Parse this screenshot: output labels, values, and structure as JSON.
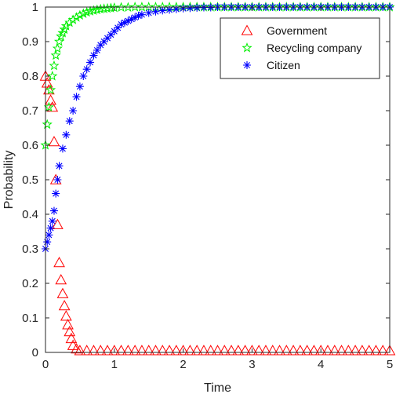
{
  "chart_data": {
    "type": "scatter",
    "title": "",
    "xlabel": "Time",
    "ylabel": "Probability",
    "xlim": [
      0,
      5
    ],
    "ylim": [
      0,
      1
    ],
    "x_ticks": [
      0,
      1,
      2,
      3,
      4,
      5
    ],
    "x_tick_labels": [
      "0",
      "1",
      "2",
      "3",
      "4",
      "5"
    ],
    "y_ticks": [
      0,
      0.1,
      0.2,
      0.3,
      0.4,
      0.5,
      0.6,
      0.7,
      0.8,
      0.9,
      1
    ],
    "y_tick_labels": [
      "0",
      "0.1",
      "0.2",
      "0.3",
      "0.4",
      "0.5",
      "0.6",
      "0.7",
      "0.8",
      "0.9",
      "1"
    ],
    "grid": false,
    "legend_position": "top-right",
    "series": [
      {
        "name": "Government",
        "marker": "triangle",
        "color": "#ff0000",
        "x": [
          0,
          0.025,
          0.05,
          0.075,
          0.1,
          0.125,
          0.15,
          0.175,
          0.2,
          0.225,
          0.25,
          0.275,
          0.3,
          0.325,
          0.35,
          0.375,
          0.4,
          0.45,
          0.5,
          0.6,
          0.7,
          0.8,
          0.9,
          1.0,
          1.1,
          1.2,
          1.3,
          1.4,
          1.5,
          1.6,
          1.7,
          1.8,
          1.9,
          2.0,
          2.1,
          2.2,
          2.3,
          2.4,
          2.5,
          2.6,
          2.7,
          2.8,
          2.9,
          3.0,
          3.1,
          3.2,
          3.3,
          3.4,
          3.5,
          3.6,
          3.7,
          3.8,
          3.9,
          4.0,
          4.1,
          4.2,
          4.3,
          4.4,
          4.5,
          4.6,
          4.7,
          4.8,
          4.9,
          5.0
        ],
        "y": [
          0.8,
          0.78,
          0.76,
          0.73,
          0.71,
          0.61,
          0.5,
          0.37,
          0.26,
          0.21,
          0.17,
          0.135,
          0.105,
          0.08,
          0.06,
          0.04,
          0.02,
          0.01,
          0.005,
          0.005,
          0.005,
          0.005,
          0.005,
          0.005,
          0.005,
          0.005,
          0.005,
          0.005,
          0.005,
          0.005,
          0.005,
          0.005,
          0.005,
          0.005,
          0.005,
          0.005,
          0.005,
          0.005,
          0.005,
          0.005,
          0.005,
          0.005,
          0.005,
          0.005,
          0.005,
          0.005,
          0.005,
          0.005,
          0.005,
          0.005,
          0.005,
          0.005,
          0.005,
          0.005,
          0.005,
          0.005,
          0.005,
          0.005,
          0.005,
          0.005,
          0.005,
          0.005,
          0.005,
          0.005
        ]
      },
      {
        "name": "Recycling company",
        "marker": "pentagram",
        "color": "#00ee00",
        "x": [
          0,
          0.025,
          0.05,
          0.075,
          0.1,
          0.125,
          0.15,
          0.175,
          0.2,
          0.225,
          0.25,
          0.275,
          0.3,
          0.35,
          0.4,
          0.45,
          0.5,
          0.55,
          0.6,
          0.65,
          0.7,
          0.75,
          0.8,
          0.85,
          0.9,
          0.95,
          1.0,
          1.1,
          1.2,
          1.3,
          1.4,
          1.5,
          1.6,
          1.7,
          1.8,
          1.9,
          2.0,
          2.1,
          2.2,
          2.3,
          2.4,
          2.5,
          2.6,
          2.7,
          2.8,
          2.9,
          3.0,
          3.1,
          3.2,
          3.3,
          3.4,
          3.5,
          3.6,
          3.7,
          3.8,
          3.9,
          4.0,
          4.1,
          4.2,
          4.3,
          4.4,
          4.5,
          4.6,
          4.7,
          4.8,
          4.9,
          5.0
        ],
        "y": [
          0.6,
          0.66,
          0.71,
          0.76,
          0.8,
          0.83,
          0.86,
          0.88,
          0.9,
          0.915,
          0.925,
          0.935,
          0.945,
          0.955,
          0.963,
          0.97,
          0.976,
          0.981,
          0.985,
          0.988,
          0.99,
          0.992,
          0.994,
          0.995,
          0.996,
          0.997,
          0.998,
          0.999,
          0.999,
          1,
          1,
          1,
          1,
          1,
          1,
          1,
          1,
          1,
          1,
          1,
          1,
          1,
          1,
          1,
          1,
          1,
          1,
          1,
          1,
          1,
          1,
          1,
          1,
          1,
          1,
          1,
          1,
          1,
          1,
          1,
          1,
          1,
          1,
          1,
          1,
          1,
          1
        ]
      },
      {
        "name": "Citizen",
        "marker": "asterisk",
        "color": "#0000ff",
        "x": [
          0,
          0.025,
          0.05,
          0.075,
          0.1,
          0.125,
          0.15,
          0.175,
          0.2,
          0.25,
          0.3,
          0.35,
          0.4,
          0.45,
          0.5,
          0.55,
          0.6,
          0.65,
          0.7,
          0.75,
          0.8,
          0.85,
          0.9,
          0.95,
          1.0,
          1.05,
          1.1,
          1.15,
          1.2,
          1.25,
          1.3,
          1.35,
          1.4,
          1.5,
          1.6,
          1.7,
          1.8,
          1.9,
          2.0,
          2.1,
          2.2,
          2.3,
          2.4,
          2.5,
          2.6,
          2.7,
          2.8,
          2.9,
          3.0,
          3.1,
          3.2,
          3.3,
          3.4,
          3.5,
          3.6,
          3.7,
          3.8,
          3.9,
          4.0,
          4.1,
          4.2,
          4.3,
          4.4,
          4.5,
          4.6,
          4.7,
          4.8,
          4.9,
          5.0
        ],
        "y": [
          0.3,
          0.32,
          0.34,
          0.36,
          0.38,
          0.41,
          0.46,
          0.5,
          0.54,
          0.59,
          0.63,
          0.67,
          0.7,
          0.74,
          0.77,
          0.8,
          0.82,
          0.84,
          0.86,
          0.875,
          0.89,
          0.9,
          0.91,
          0.92,
          0.93,
          0.94,
          0.95,
          0.955,
          0.96,
          0.965,
          0.97,
          0.975,
          0.978,
          0.983,
          0.987,
          0.99,
          0.992,
          0.994,
          0.996,
          0.997,
          0.998,
          0.999,
          0.999,
          1,
          1,
          1,
          1,
          1,
          1,
          1,
          1,
          1,
          1,
          1,
          1,
          1,
          1,
          1,
          1,
          1,
          1,
          1,
          1,
          1,
          1,
          1,
          1,
          1,
          1
        ]
      }
    ]
  }
}
